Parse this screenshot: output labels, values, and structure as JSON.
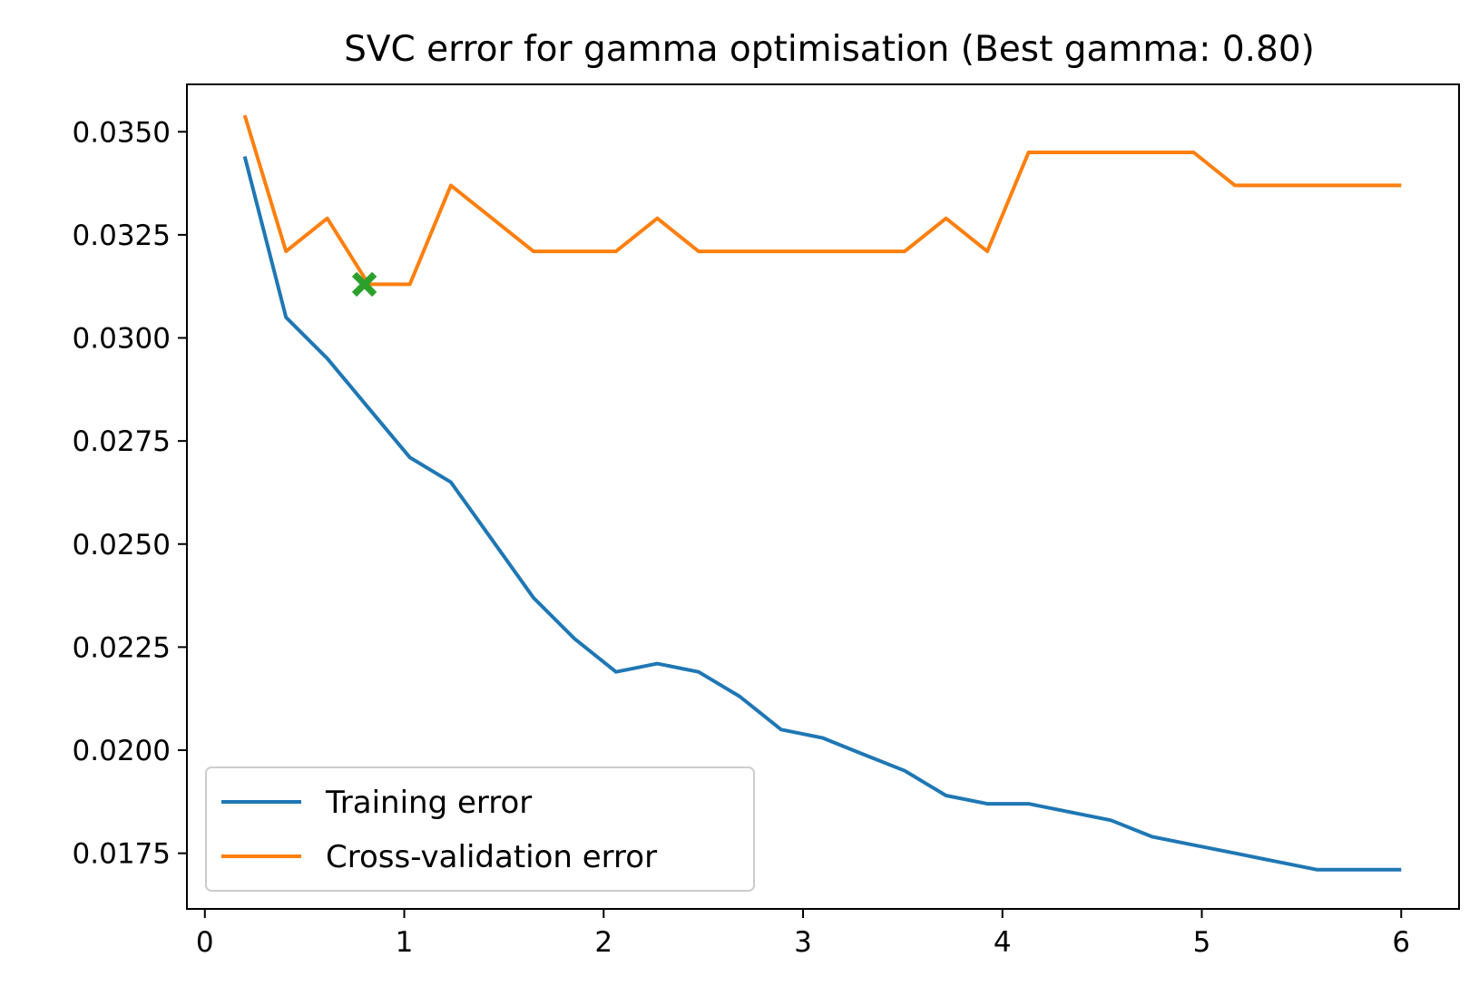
{
  "chart_data": {
    "type": "line",
    "title": "SVC error for gamma optimisation (Best gamma: 0.80)",
    "xlabel": "",
    "ylabel": "",
    "xlim": [
      -0.09,
      6.29
    ],
    "ylim": [
      0.01615,
      0.03615
    ],
    "x_ticks": [
      0,
      1,
      2,
      3,
      4,
      5,
      6
    ],
    "x_tick_labels": [
      "0",
      "1",
      "2",
      "3",
      "4",
      "5",
      "6"
    ],
    "y_ticks": [
      0.0175,
      0.02,
      0.0225,
      0.025,
      0.0275,
      0.03,
      0.0325,
      0.035
    ],
    "y_tick_labels": [
      "0.0175",
      "0.0200",
      "0.0225",
      "0.0250",
      "0.0275",
      "0.0300",
      "0.0325",
      "0.0350"
    ],
    "grid": false,
    "legend_position": "lower-left",
    "x": [
      0.2,
      0.407,
      0.614,
      0.821,
      1.028,
      1.234,
      1.441,
      1.648,
      1.855,
      2.062,
      2.269,
      2.476,
      2.683,
      2.89,
      3.097,
      3.303,
      3.51,
      3.717,
      3.924,
      4.131,
      4.338,
      4.545,
      4.752,
      4.959,
      5.166,
      5.372,
      5.579,
      5.786,
      6.0
    ],
    "series": [
      {
        "name": "Training error",
        "color": "#1f77b4",
        "values": [
          0.0344,
          0.0305,
          0.0295,
          0.0283,
          0.0271,
          0.0265,
          0.0251,
          0.0237,
          0.0227,
          0.0219,
          0.0221,
          0.0219,
          0.0213,
          0.0205,
          0.0203,
          0.0199,
          0.0195,
          0.0189,
          0.0187,
          0.0187,
          0.0185,
          0.0183,
          0.0179,
          0.0177,
          0.0175,
          0.0173,
          0.0171,
          0.0171,
          0.0171
        ]
      },
      {
        "name": "Cross-validation error",
        "color": "#ff7f0e",
        "values": [
          0.0354,
          0.0321,
          0.0329,
          0.0313,
          0.0313,
          0.0337,
          0.0329,
          0.0321,
          0.0321,
          0.0321,
          0.0329,
          0.0321,
          0.0321,
          0.0321,
          0.0321,
          0.0321,
          0.0321,
          0.0329,
          0.0321,
          0.0345,
          0.0345,
          0.0345,
          0.0345,
          0.0345,
          0.0337,
          0.0337,
          0.0337,
          0.0337,
          0.0337
        ]
      }
    ],
    "marker": {
      "x": 0.8,
      "y": 0.0313,
      "color": "#2ca02c",
      "symbol": "X"
    }
  }
}
